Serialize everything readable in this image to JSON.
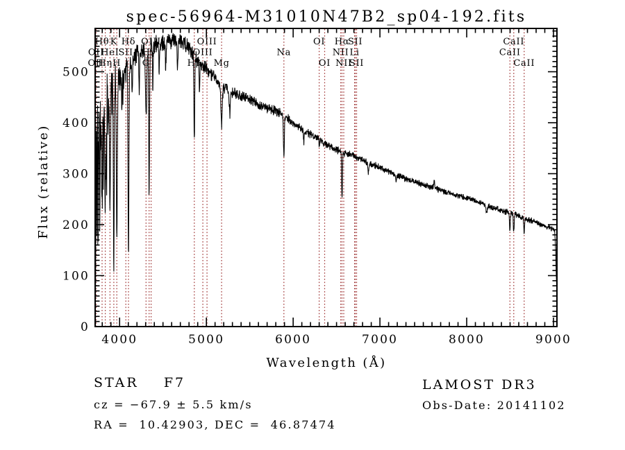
{
  "title": "spec-56964-M31010N47B2_sp04-192.fits",
  "annotations": {
    "object_class": "STAR    F7",
    "cz": "cz = −67.9 ± 5.5 km/s",
    "radec": "RA =  10.42903, DEC =  46.87474",
    "survey": "LAMOST DR3",
    "obs_date": "Obs-Date: 20141102"
  },
  "chart_data": {
    "type": "line",
    "title": "spec-56964-M31010N47B2_sp04-192.fits",
    "xlabel": "Wavelength (Å)",
    "ylabel": "Flux (relative)",
    "xlim": [
      3718,
      9040
    ],
    "ylim": [
      0,
      585
    ],
    "x_ticks": [
      4000,
      5000,
      6000,
      7000,
      8000,
      9000
    ],
    "y_ticks": [
      0,
      100,
      200,
      300,
      400,
      500
    ],
    "x_minor_step": 100,
    "y_minor_step": 10,
    "grid": false,
    "spectrum_color": "#000000",
    "marker_line_color": "#a23a3a",
    "spectral_lines": [
      {
        "wavelength": 3726,
        "label": "OII",
        "row": "bottom"
      },
      {
        "wavelength": 3729,
        "label": "OII",
        "row": "middle"
      },
      {
        "wavelength": 3798,
        "label": "Hθ",
        "row": "top"
      },
      {
        "wavelength": 3835,
        "label": "Hη",
        "row": "bottom"
      },
      {
        "wavelength": 3889,
        "label": "HeI",
        "row": "middle"
      },
      {
        "wavelength": 3933,
        "label": "K",
        "row": "top"
      },
      {
        "wavelength": 3968,
        "label": "H",
        "row": "bottom"
      },
      {
        "wavelength": 4072,
        "label": "SII",
        "row": "middle"
      },
      {
        "wavelength": 4102,
        "label": "Hδ",
        "row": "top"
      },
      {
        "wavelength": 4305,
        "label": "G",
        "row": "bottom"
      },
      {
        "wavelength": 4340,
        "label": "Hγ",
        "row": "middle"
      },
      {
        "wavelength": 4363,
        "label": "OIII",
        "row": "top"
      },
      {
        "wavelength": 4861,
        "label": "Hβ",
        "row": "bottom"
      },
      {
        "wavelength": 4959,
        "label": "OIII",
        "row": "middle"
      },
      {
        "wavelength": 5007,
        "label": "OIII",
        "row": "top"
      },
      {
        "wavelength": 5175,
        "label": "Mg",
        "row": "bottom"
      },
      {
        "wavelength": 5893,
        "label": "Na",
        "row": "middle"
      },
      {
        "wavelength": 6300,
        "label": "OI",
        "row": "top"
      },
      {
        "wavelength": 6363,
        "label": "OI",
        "row": "bottom"
      },
      {
        "wavelength": 6548,
        "label": "NII",
        "row": "middle"
      },
      {
        "wavelength": 6563,
        "label": "Hα",
        "row": "top"
      },
      {
        "wavelength": 6583,
        "label": "NII",
        "row": "bottom"
      },
      {
        "wavelength": 6708,
        "label": "Li",
        "row": "middle"
      },
      {
        "wavelength": 6716,
        "label": "SII",
        "row": "top"
      },
      {
        "wavelength": 6731,
        "label": "SII",
        "row": "bottom"
      },
      {
        "wavelength": 8498,
        "label": "CaII",
        "row": "middle"
      },
      {
        "wavelength": 8542,
        "label": "CaII",
        "row": "top"
      },
      {
        "wavelength": 8662,
        "label": "CaII",
        "row": "bottom"
      }
    ],
    "continuum": [
      [
        3718,
        350
      ],
      [
        3745,
        368
      ],
      [
        3775,
        405
      ],
      [
        3800,
        432
      ],
      [
        3830,
        452
      ],
      [
        3860,
        468
      ],
      [
        3900,
        480
      ],
      [
        3950,
        488
      ],
      [
        4000,
        494
      ],
      [
        4050,
        500
      ],
      [
        4100,
        508
      ],
      [
        4150,
        520
      ],
      [
        4200,
        533
      ],
      [
        4250,
        541
      ],
      [
        4300,
        548
      ],
      [
        4350,
        551
      ],
      [
        4400,
        553
      ],
      [
        4450,
        556
      ],
      [
        4500,
        558
      ],
      [
        4550,
        560
      ],
      [
        4600,
        562
      ],
      [
        4650,
        561
      ],
      [
        4700,
        558
      ],
      [
        4750,
        553
      ],
      [
        4800,
        546
      ],
      [
        4850,
        534
      ],
      [
        4900,
        521
      ],
      [
        4950,
        512
      ],
      [
        5000,
        506
      ],
      [
        5050,
        498
      ],
      [
        5100,
        489
      ],
      [
        5150,
        478
      ],
      [
        5200,
        470
      ],
      [
        5250,
        464
      ],
      [
        5300,
        461
      ],
      [
        5350,
        456
      ],
      [
        5400,
        452
      ],
      [
        5450,
        449
      ],
      [
        5500,
        446
      ],
      [
        5550,
        441
      ],
      [
        5600,
        436
      ],
      [
        5650,
        432
      ],
      [
        5700,
        429
      ],
      [
        5750,
        426
      ],
      [
        5800,
        423
      ],
      [
        5850,
        419
      ],
      [
        5900,
        413
      ],
      [
        5950,
        406
      ],
      [
        6000,
        399
      ],
      [
        6100,
        388
      ],
      [
        6200,
        377
      ],
      [
        6300,
        367
      ],
      [
        6400,
        357
      ],
      [
        6500,
        347
      ],
      [
        6600,
        340
      ],
      [
        6700,
        335
      ],
      [
        6800,
        327
      ],
      [
        6900,
        319
      ],
      [
        7000,
        312
      ],
      [
        7100,
        305
      ],
      [
        7200,
        297
      ],
      [
        7300,
        290
      ],
      [
        7400,
        284
      ],
      [
        7500,
        279
      ],
      [
        7600,
        273
      ],
      [
        7700,
        267
      ],
      [
        7800,
        262
      ],
      [
        7900,
        257
      ],
      [
        8000,
        252
      ],
      [
        8100,
        246
      ],
      [
        8200,
        241
      ],
      [
        8300,
        234
      ],
      [
        8400,
        228
      ],
      [
        8500,
        223
      ],
      [
        8600,
        217
      ],
      [
        8700,
        210
      ],
      [
        8800,
        205
      ],
      [
        8900,
        197
      ],
      [
        9000,
        191
      ],
      [
        9015,
        186
      ],
      [
        9025,
        150
      ],
      [
        9040,
        55
      ]
    ],
    "absorption_features": [
      [
        3722,
        300,
        2.5
      ],
      [
        3737,
        190,
        2
      ],
      [
        3753,
        160,
        2
      ],
      [
        3771,
        230,
        2.5
      ],
      [
        3798,
        210,
        5
      ],
      [
        3815,
        140,
        2
      ],
      [
        3835,
        235,
        5
      ],
      [
        3850,
        200,
        2.5
      ],
      [
        3868,
        120,
        2.5
      ],
      [
        3889,
        235,
        5
      ],
      [
        3933,
        355,
        5
      ],
      [
        3968,
        330,
        5.5
      ],
      [
        4026,
        70,
        4
      ],
      [
        4102,
        375,
        5
      ],
      [
        4144,
        60,
        4
      ],
      [
        4226,
        80,
        3.5
      ],
      [
        4305,
        140,
        7
      ],
      [
        4340,
        285,
        5
      ],
      [
        4383,
        90,
        4
      ],
      [
        4455,
        55,
        4
      ],
      [
        4531,
        50,
        4
      ],
      [
        4668,
        55,
        4
      ],
      [
        4861,
        175,
        4.5
      ],
      [
        4920,
        60,
        4
      ],
      [
        5175,
        75,
        8
      ],
      [
        5270,
        45,
        6
      ],
      [
        5893,
        82,
        5
      ],
      [
        6122,
        25,
        4
      ],
      [
        6300,
        20,
        3
      ],
      [
        6563,
        95,
        4.5
      ],
      [
        6867,
        22,
        5
      ],
      [
        7186,
        14,
        7
      ],
      [
        7626,
        -18,
        4
      ],
      [
        8230,
        16,
        9
      ],
      [
        8498,
        35,
        4.5
      ],
      [
        8542,
        38,
        4.5
      ],
      [
        8662,
        30,
        4.5
      ]
    ],
    "noise_profile": [
      [
        3718,
        95
      ],
      [
        3760,
        78
      ],
      [
        3800,
        55
      ],
      [
        3860,
        45
      ],
      [
        3920,
        38
      ],
      [
        4000,
        26
      ],
      [
        4150,
        20
      ],
      [
        4300,
        17
      ],
      [
        4600,
        15
      ],
      [
        4900,
        13
      ],
      [
        5200,
        11
      ],
      [
        5600,
        9.5
      ],
      [
        6000,
        8
      ],
      [
        6500,
        7
      ],
      [
        7000,
        6
      ],
      [
        7600,
        5.5
      ],
      [
        8200,
        5
      ],
      [
        8700,
        5.5
      ],
      [
        9040,
        5
      ]
    ]
  }
}
